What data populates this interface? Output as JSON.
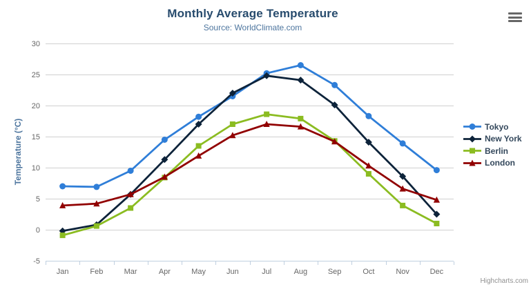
{
  "header": {
    "title": "Monthly Average Temperature",
    "subtitle": "Source: WorldClimate.com"
  },
  "icons": {
    "menu": "hamburger-icon"
  },
  "credit": "Highcharts.com",
  "colors": {
    "title": "#274b6d",
    "subtitle": "#4d759e",
    "axis_label": "#666666",
    "axis_title": "#4d759e",
    "grid": "#d0d0d0",
    "axis_line": "#c0d0e0",
    "legend_text": "#33475b",
    "credit": "#909090",
    "menu_icon": "#666666"
  },
  "chart_data": {
    "type": "line",
    "title": "Monthly Average Temperature",
    "subtitle": "Source: WorldClimate.com",
    "categories": [
      "Jan",
      "Feb",
      "Mar",
      "Apr",
      "May",
      "Jun",
      "Jul",
      "Aug",
      "Sep",
      "Oct",
      "Nov",
      "Dec"
    ],
    "series": [
      {
        "name": "Tokyo",
        "color": "#2f7ed8",
        "marker": "circle",
        "values": [
          7.0,
          6.9,
          9.5,
          14.5,
          18.2,
          21.5,
          25.2,
          26.5,
          23.3,
          18.3,
          13.9,
          9.6
        ]
      },
      {
        "name": "New York",
        "color": "#0d233a",
        "marker": "diamond",
        "values": [
          -0.2,
          0.8,
          5.7,
          11.3,
          17.0,
          22.0,
          24.8,
          24.1,
          20.1,
          14.1,
          8.6,
          2.5
        ]
      },
      {
        "name": "Berlin",
        "color": "#8bbc21",
        "marker": "square",
        "values": [
          -0.9,
          0.6,
          3.5,
          8.4,
          13.5,
          17.0,
          18.6,
          17.9,
          14.3,
          9.0,
          3.9,
          1.0
        ]
      },
      {
        "name": "London",
        "color": "#910000",
        "marker": "triangle",
        "values": [
          3.9,
          4.2,
          5.7,
          8.5,
          11.9,
          15.2,
          17.0,
          16.6,
          14.2,
          10.3,
          6.6,
          4.8
        ]
      }
    ],
    "xlabel": "",
    "ylabel": "Temperature (°C)",
    "ylim": [
      -5,
      30
    ],
    "ytick_step": 5,
    "grid": true,
    "legend_position": "right"
  }
}
